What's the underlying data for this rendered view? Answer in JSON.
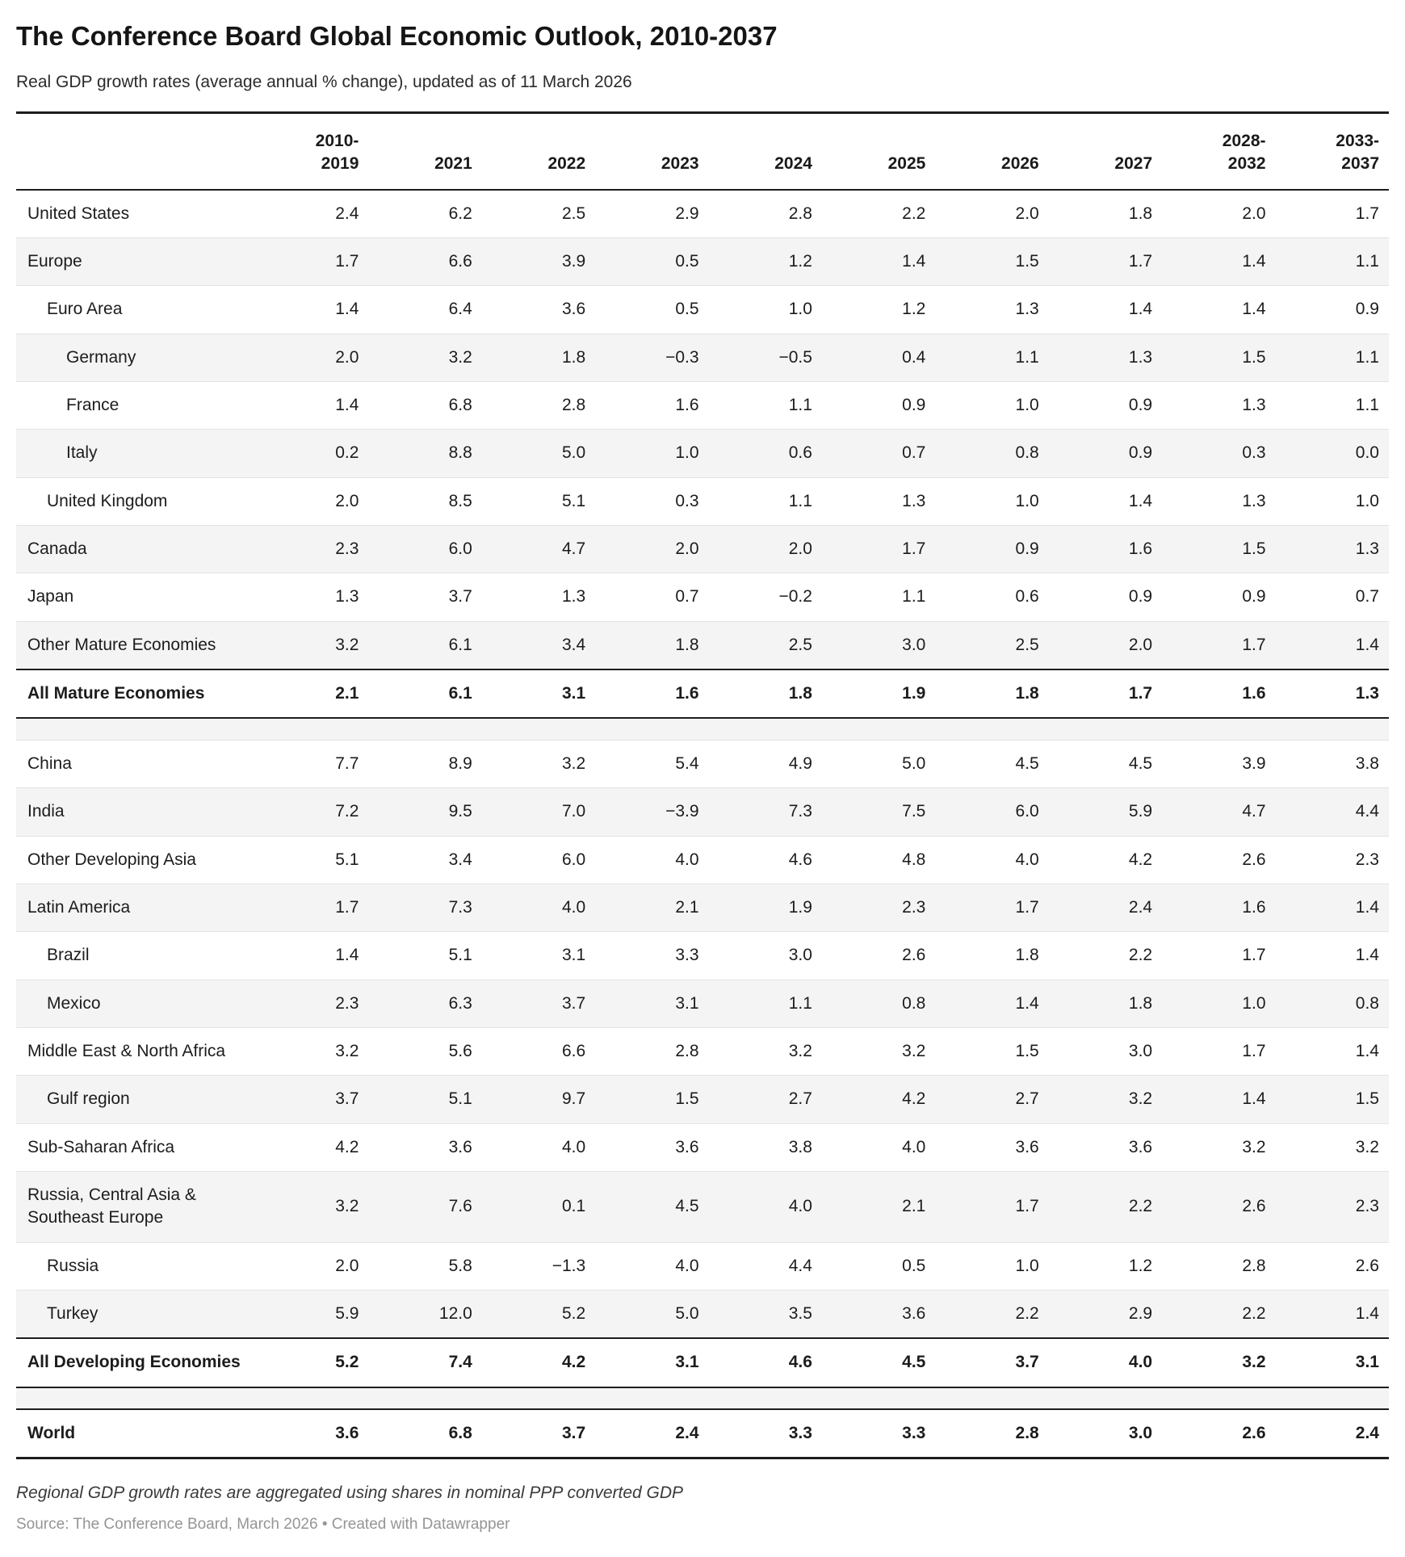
{
  "header": {
    "title": "The Conference Board Global Economic Outlook, 2010-2037",
    "subtitle": "Real GDP growth rates (average annual % change), updated as of 11 March 2026"
  },
  "footer": {
    "note": "Regional GDP growth rates are aggregated using shares in nominal PPP converted GDP",
    "source": "Source: The Conference Board, March 2026 • Created with Datawrapper"
  },
  "colors": {
    "thick_border": "#1d1d1d",
    "thin_border": "#e3e3e3",
    "zebra_shade": "#f4f4f4",
    "text": "#1c1c1c",
    "source_text": "#959595"
  },
  "chart_data": {
    "type": "table",
    "title": "The Conference Board Global Economic Outlook, 2010-2037",
    "subtitle": "Real GDP growth rates (average annual % change), updated as of 11 March 2026",
    "columns": [
      [
        "2010-",
        "2019"
      ],
      [
        "2021"
      ],
      [
        "2022"
      ],
      [
        "2023"
      ],
      [
        "2024"
      ],
      [
        "2025"
      ],
      [
        "2026"
      ],
      [
        "2027"
      ],
      [
        "2028-",
        "2032"
      ],
      [
        "2033-",
        "2037"
      ]
    ],
    "rows": [
      {
        "label": "United States",
        "indent": 0,
        "bold": false,
        "values": [
          "2.4",
          "6.2",
          "2.5",
          "2.9",
          "2.8",
          "2.2",
          "2.0",
          "1.8",
          "2.0",
          "1.7"
        ]
      },
      {
        "label": "Europe",
        "indent": 0,
        "bold": false,
        "values": [
          "1.7",
          "6.6",
          "3.9",
          "0.5",
          "1.2",
          "1.4",
          "1.5",
          "1.7",
          "1.4",
          "1.1"
        ]
      },
      {
        "label": "Euro Area",
        "indent": 1,
        "bold": false,
        "values": [
          "1.4",
          "6.4",
          "3.6",
          "0.5",
          "1.0",
          "1.2",
          "1.3",
          "1.4",
          "1.4",
          "0.9"
        ]
      },
      {
        "label": "Germany",
        "indent": 2,
        "bold": false,
        "values": [
          "2.0",
          "3.2",
          "1.8",
          "−0.3",
          "−0.5",
          "0.4",
          "1.1",
          "1.3",
          "1.5",
          "1.1"
        ]
      },
      {
        "label": "France",
        "indent": 2,
        "bold": false,
        "values": [
          "1.4",
          "6.8",
          "2.8",
          "1.6",
          "1.1",
          "0.9",
          "1.0",
          "0.9",
          "1.3",
          "1.1"
        ]
      },
      {
        "label": "Italy",
        "indent": 2,
        "bold": false,
        "values": [
          "0.2",
          "8.8",
          "5.0",
          "1.0",
          "0.6",
          "0.7",
          "0.8",
          "0.9",
          "0.3",
          "0.0"
        ]
      },
      {
        "label": "United Kingdom",
        "indent": 1,
        "bold": false,
        "values": [
          "2.0",
          "8.5",
          "5.1",
          "0.3",
          "1.1",
          "1.3",
          "1.0",
          "1.4",
          "1.3",
          "1.0"
        ]
      },
      {
        "label": "Canada",
        "indent": 0,
        "bold": false,
        "values": [
          "2.3",
          "6.0",
          "4.7",
          "2.0",
          "2.0",
          "1.7",
          "0.9",
          "1.6",
          "1.5",
          "1.3"
        ]
      },
      {
        "label": "Japan",
        "indent": 0,
        "bold": false,
        "values": [
          "1.3",
          "3.7",
          "1.3",
          "0.7",
          "−0.2",
          "1.1",
          "0.6",
          "0.9",
          "0.9",
          "0.7"
        ]
      },
      {
        "label": "Other Mature Economies",
        "indent": 0,
        "bold": false,
        "values": [
          "3.2",
          "6.1",
          "3.4",
          "1.8",
          "2.5",
          "3.0",
          "2.5",
          "2.0",
          "1.7",
          "1.4"
        ]
      },
      {
        "label": "All Mature Economies",
        "indent": 0,
        "bold": true,
        "values": [
          "2.1",
          "6.1",
          "3.1",
          "1.6",
          "1.8",
          "1.9",
          "1.8",
          "1.7",
          "1.6",
          "1.3"
        ]
      },
      {
        "type": "spacer"
      },
      {
        "label": "China",
        "indent": 0,
        "bold": false,
        "values": [
          "7.7",
          "8.9",
          "3.2",
          "5.4",
          "4.9",
          "5.0",
          "4.5",
          "4.5",
          "3.9",
          "3.8"
        ]
      },
      {
        "label": "India",
        "indent": 0,
        "bold": false,
        "values": [
          "7.2",
          "9.5",
          "7.0",
          "−3.9",
          "7.3",
          "7.5",
          "6.0",
          "5.9",
          "4.7",
          "4.4"
        ]
      },
      {
        "label": "Other Developing Asia",
        "indent": 0,
        "bold": false,
        "values": [
          "5.1",
          "3.4",
          "6.0",
          "4.0",
          "4.6",
          "4.8",
          "4.0",
          "4.2",
          "2.6",
          "2.3"
        ]
      },
      {
        "label": "Latin America",
        "indent": 0,
        "bold": false,
        "values": [
          "1.7",
          "7.3",
          "4.0",
          "2.1",
          "1.9",
          "2.3",
          "1.7",
          "2.4",
          "1.6",
          "1.4"
        ]
      },
      {
        "label": "Brazil",
        "indent": 1,
        "bold": false,
        "values": [
          "1.4",
          "5.1",
          "3.1",
          "3.3",
          "3.0",
          "2.6",
          "1.8",
          "2.2",
          "1.7",
          "1.4"
        ]
      },
      {
        "label": "Mexico",
        "indent": 1,
        "bold": false,
        "values": [
          "2.3",
          "6.3",
          "3.7",
          "3.1",
          "1.1",
          "0.8",
          "1.4",
          "1.8",
          "1.0",
          "0.8"
        ]
      },
      {
        "label": "Middle East & North Africa",
        "indent": 0,
        "bold": false,
        "values": [
          "3.2",
          "5.6",
          "6.6",
          "2.8",
          "3.2",
          "3.2",
          "1.5",
          "3.0",
          "1.7",
          "1.4"
        ]
      },
      {
        "label": "Gulf region",
        "indent": 1,
        "bold": false,
        "values": [
          "3.7",
          "5.1",
          "9.7",
          "1.5",
          "2.7",
          "4.2",
          "2.7",
          "3.2",
          "1.4",
          "1.5"
        ]
      },
      {
        "label": "Sub-Saharan Africa",
        "indent": 0,
        "bold": false,
        "values": [
          "4.2",
          "3.6",
          "4.0",
          "3.6",
          "3.8",
          "4.0",
          "3.6",
          "3.6",
          "3.2",
          "3.2"
        ]
      },
      {
        "label": "Russia, Central Asia & Southeast Europe",
        "indent": 0,
        "bold": false,
        "values": [
          "3.2",
          "7.6",
          "0.1",
          "4.5",
          "4.0",
          "2.1",
          "1.7",
          "2.2",
          "2.6",
          "2.3"
        ]
      },
      {
        "label": "Russia",
        "indent": 1,
        "bold": false,
        "values": [
          "2.0",
          "5.8",
          "−1.3",
          "4.0",
          "4.4",
          "0.5",
          "1.0",
          "1.2",
          "2.8",
          "2.6"
        ]
      },
      {
        "label": "Turkey",
        "indent": 1,
        "bold": false,
        "values": [
          "5.9",
          "12.0",
          "5.2",
          "5.0",
          "3.5",
          "3.6",
          "2.2",
          "2.9",
          "2.2",
          "1.4"
        ]
      },
      {
        "label": "All Developing Economies",
        "indent": 0,
        "bold": true,
        "values": [
          "5.2",
          "7.4",
          "4.2",
          "3.1",
          "4.6",
          "4.5",
          "3.7",
          "4.0",
          "3.2",
          "3.1"
        ]
      },
      {
        "type": "spacer"
      },
      {
        "label": "World",
        "indent": 0,
        "bold": true,
        "values": [
          "3.6",
          "6.8",
          "3.7",
          "2.4",
          "3.3",
          "3.3",
          "2.8",
          "3.0",
          "2.6",
          "2.4"
        ]
      }
    ]
  }
}
